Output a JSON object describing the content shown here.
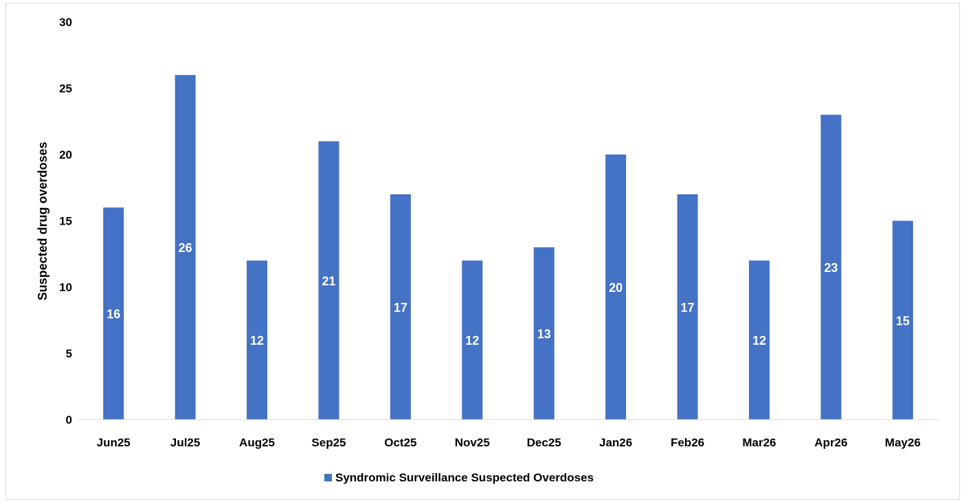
{
  "chart_data": {
    "type": "bar",
    "title": "",
    "xlabel": "",
    "ylabel": "Suspected drug overdoses",
    "ylim": [
      0,
      30
    ],
    "yticks": [
      0,
      5,
      10,
      15,
      20,
      25,
      30
    ],
    "grid": false,
    "legend_position": "bottom",
    "categories": [
      "Jun25",
      "Jul25",
      "Aug25",
      "Sep25",
      "Oct25",
      "Nov25",
      "Dec25",
      "Jan26",
      "Feb26",
      "Mar26",
      "Apr26",
      "May26"
    ],
    "series": [
      {
        "name": "Syndromic Surveillance Suspected Overdoses",
        "color": "#4472c4",
        "values": [
          16,
          26,
          12,
          21,
          17,
          12,
          13,
          20,
          17,
          12,
          23,
          15
        ]
      }
    ],
    "data_labels": true
  }
}
